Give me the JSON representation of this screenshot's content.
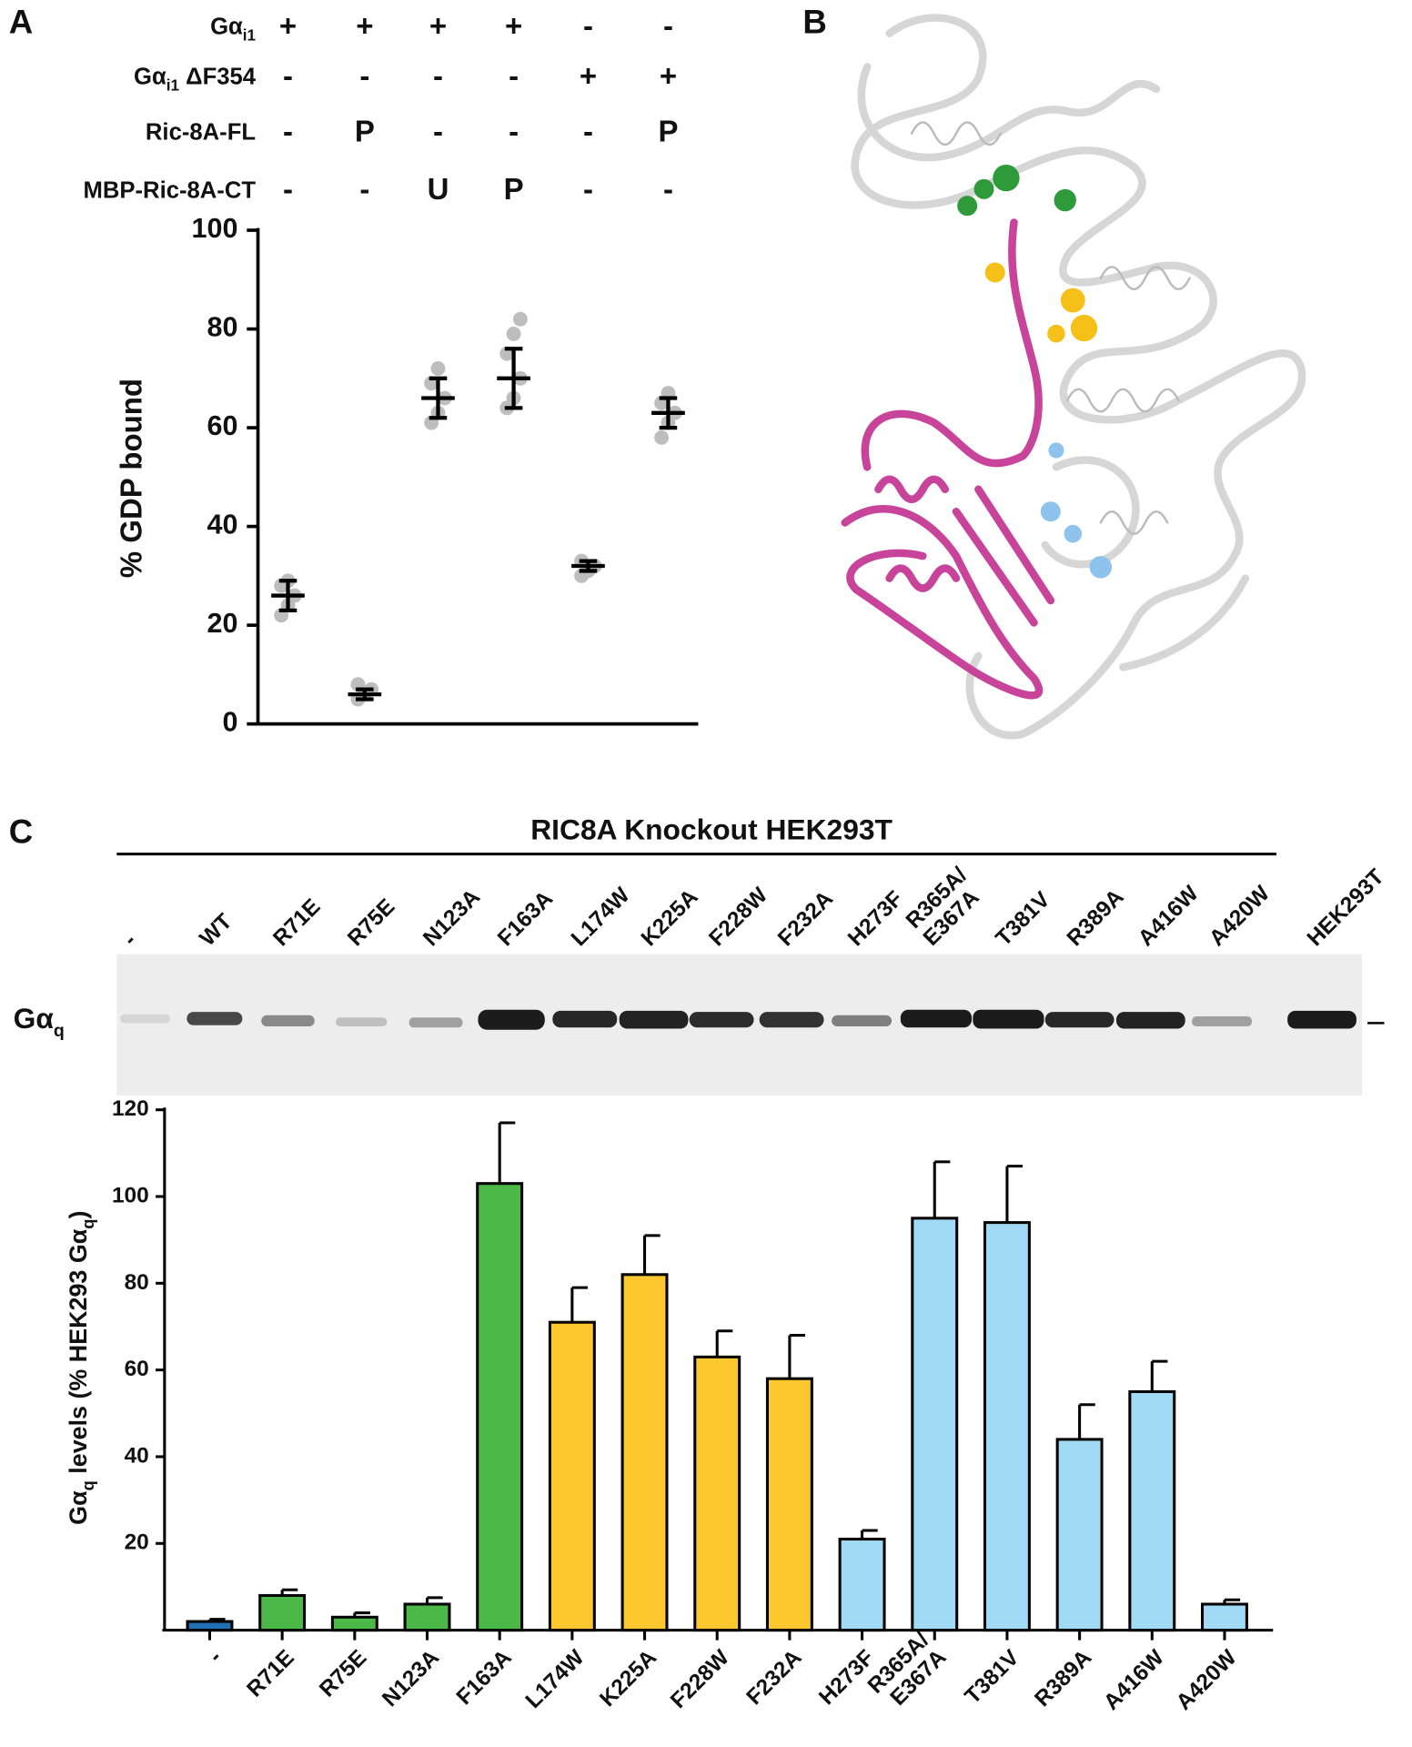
{
  "panel_labels": [
    "A",
    "B",
    "C"
  ],
  "blot": {
    "title": "RIC8A Knockout HEK293T",
    "lanes": [
      "-",
      "WT",
      "R71E",
      "R75E",
      "N123A",
      "F163A",
      "L174W",
      "K225A",
      "F228W",
      "F232A",
      "H273F",
      [
        "R365A/",
        "E367A"
      ],
      "T381V",
      "R389A",
      "A416W",
      "A420W",
      "HEK293T"
    ],
    "band_label": [
      "Gα",
      "q"
    ]
  },
  "chart_data": [
    {
      "type": "dot",
      "ylabel": "% GDP bound",
      "conditions": [
        {
          "label": [
            "Gα",
            "i1"
          ],
          "values": [
            "+",
            "+",
            "+",
            "+",
            "-",
            "-"
          ]
        },
        {
          "label": [
            "Gα",
            "i1",
            " ΔF354"
          ],
          "values": [
            "-",
            "-",
            "-",
            "-",
            "+",
            "+"
          ]
        },
        {
          "label": [
            "Ric-8A-FL"
          ],
          "values": [
            "-",
            "P",
            "-",
            "-",
            "-",
            "P"
          ]
        },
        {
          "label": [
            "MBP-Ric-8A-CT"
          ],
          "values": [
            "-",
            "-",
            "U",
            "P",
            "-",
            "-"
          ]
        }
      ],
      "values": [
        26,
        6,
        66,
        70,
        32,
        63
      ],
      "errors": [
        3,
        1,
        4,
        6,
        1,
        3
      ],
      "points": [
        [
          22,
          24,
          26,
          28,
          29
        ],
        [
          5,
          6,
          7,
          8
        ],
        [
          61,
          63,
          66,
          69,
          72
        ],
        [
          64,
          66,
          70,
          75,
          79,
          82
        ],
        [
          30,
          31,
          32,
          33
        ],
        [
          58,
          61,
          63,
          65,
          67
        ]
      ],
      "color": "#000000",
      "point_color": "#bdbdbd",
      "ylim": [
        0,
        100
      ],
      "yticks": [
        0,
        20,
        40,
        60,
        80,
        100
      ]
    },
    {
      "type": "bar",
      "ylabel": [
        "Gα",
        "q",
        " levels (% HEK293 Gα",
        "q",
        ")"
      ],
      "categories": [
        "-",
        "R71E",
        "R75E",
        "N123A",
        "F163A",
        "L174W",
        "K225A",
        "F228W",
        "F232A",
        "H273F",
        [
          "R365A/",
          "E367A"
        ],
        "T381V",
        "R389A",
        "A416W",
        "A420W"
      ],
      "values": [
        2,
        8,
        3,
        6,
        103,
        71,
        82,
        63,
        58,
        21,
        95,
        94,
        44,
        55,
        6
      ],
      "errors": [
        0.5,
        1.3,
        1,
        1.5,
        14,
        8,
        9,
        6,
        10,
        2,
        13,
        13,
        8,
        7,
        1
      ],
      "colors": [
        "#1f6fb4",
        "#4cb848",
        "#4cb848",
        "#4cb848",
        "#4cb848",
        "#fdc82f",
        "#fdc82f",
        "#fdc82f",
        "#fdc82f",
        "#a1daf5",
        "#a1daf5",
        "#a1daf5",
        "#a1daf5",
        "#a1daf5",
        "#a1daf5"
      ],
      "ylim": [
        0,
        120
      ],
      "yticks": [
        20,
        40,
        60,
        80,
        100,
        120
      ]
    }
  ]
}
